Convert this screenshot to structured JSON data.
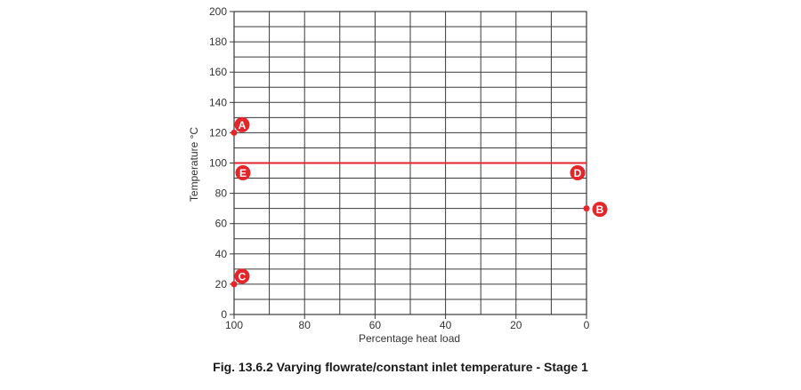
{
  "caption": "Fig. 13.6.2 Varying flowrate/constant inlet temperature - Stage 1",
  "chart_data": {
    "type": "scatter",
    "xlabel": "Percentage heat load",
    "ylabel": "Temperature °C",
    "xlim": [
      100,
      0
    ],
    "ylim": [
      0,
      200
    ],
    "x_ticks": [
      100,
      80,
      60,
      40,
      20,
      0
    ],
    "y_ticks": [
      0,
      20,
      40,
      60,
      80,
      100,
      120,
      140,
      160,
      180,
      200
    ],
    "grid": {
      "x_step": 10,
      "y_step": 10
    },
    "points": [
      {
        "label": "A",
        "x": 100,
        "y": 120
      },
      {
        "label": "B",
        "x": 0,
        "y": 70
      },
      {
        "label": "C",
        "x": 100,
        "y": 20
      }
    ],
    "lines": [
      {
        "from_label": "E",
        "to_label": "D",
        "x": [
          100,
          0
        ],
        "y": [
          100,
          100
        ]
      }
    ],
    "colors": {
      "accent": "#e4262b",
      "grid": "#3a3a3a",
      "text": "#333333"
    }
  }
}
